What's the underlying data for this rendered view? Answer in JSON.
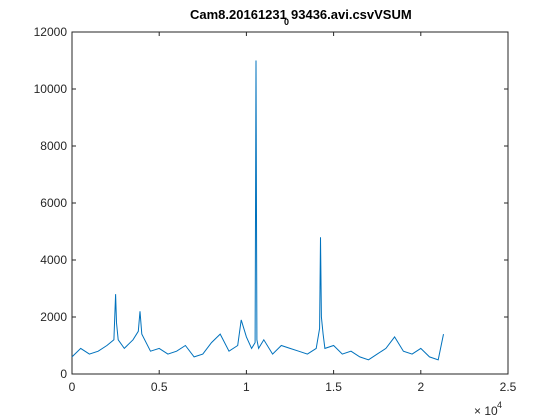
{
  "chart_data": {
    "type": "line",
    "title_main": "Cam8.20161231",
    "title_sub": "0",
    "title_tail": "93436.avi.csvVSUM",
    "xlabel": "",
    "ylabel": "",
    "xlim": [
      0,
      25000
    ],
    "ylim": [
      0,
      12000
    ],
    "x_ticks": [
      0,
      5000,
      10000,
      15000,
      20000,
      25000
    ],
    "x_tick_labels": [
      "0",
      "0.5",
      "1",
      "1.5",
      "2",
      "2.5"
    ],
    "x_exponent_base": "× 10",
    "x_exponent_power": "4",
    "y_ticks": [
      0,
      2000,
      4000,
      6000,
      8000,
      10000,
      12000
    ],
    "y_tick_labels": [
      "0",
      "2000",
      "4000",
      "6000",
      "8000",
      "10000",
      "12000"
    ],
    "grid": false,
    "line_color": "#0072BD",
    "series": [
      {
        "x": [
          0,
          500,
          1000,
          1500,
          2000,
          2400,
          2500,
          2550,
          2650,
          3000,
          3500,
          3800,
          3900,
          4000,
          4500,
          5000,
          5500,
          6000,
          6500,
          7000,
          7500,
          8000,
          8500,
          9000,
          9500,
          9700,
          10000,
          10300,
          10500,
          10550,
          10600,
          10700,
          11000,
          11500,
          12000,
          12500,
          13000,
          13500,
          14000,
          14200,
          14250,
          14300,
          14400,
          14500,
          15000,
          15500,
          16000,
          16500,
          17000,
          17500,
          18000,
          18500,
          19000,
          19500,
          20000,
          20500,
          21000,
          21300
        ],
        "y": [
          600,
          900,
          700,
          800,
          1000,
          1200,
          2800,
          1800,
          1200,
          900,
          1200,
          1500,
          2200,
          1400,
          800,
          900,
          700,
          800,
          1000,
          600,
          700,
          1100,
          1400,
          800,
          1000,
          1900,
          1300,
          900,
          1100,
          11000,
          1200,
          900,
          1200,
          700,
          1000,
          900,
          800,
          700,
          900,
          1600,
          4800,
          2000,
          1400,
          900,
          1000,
          700,
          800,
          600,
          500,
          700,
          900,
          1300,
          800,
          700,
          900,
          600,
          500,
          1400
        ]
      }
    ]
  }
}
